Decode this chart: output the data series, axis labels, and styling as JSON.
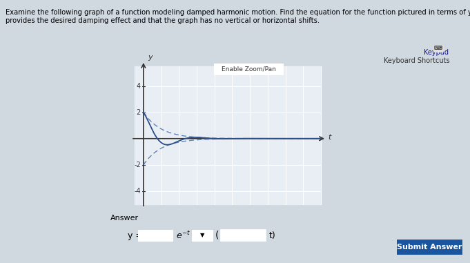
{
  "title_line1": "Examine the following graph of a function modeling damped harmonic motion. Find the equation for the function pictured in terms of y and t. Assume that a factor of e⁻ᵗ",
  "title_line2": "provides the desired damping effect and that the graph has no vertical or horizontal shifts.",
  "graph_bg_color": "#e8eef4",
  "outer_bg_color": "#d0d8e0",
  "curve_color": "#2a4f8a",
  "envelope_color": "#4a6fa8",
  "axis_color": "#333333",
  "grid_color": "#ffffff",
  "amplitude": 2,
  "decay": 1,
  "frequency": 2,
  "t_max": 10,
  "y_ticks": [
    -4,
    -2,
    2,
    4
  ],
  "y_min": -5,
  "y_max": 5.5,
  "x_min": -0.5,
  "x_max": 10,
  "button_color": "#1a56a0",
  "button_text": "Submit Answer",
  "enable_zoom_text": "Enable Zoom/Pan",
  "keypad_text": "Keypad",
  "keyboard_text": "Keyboard Shortcuts"
}
